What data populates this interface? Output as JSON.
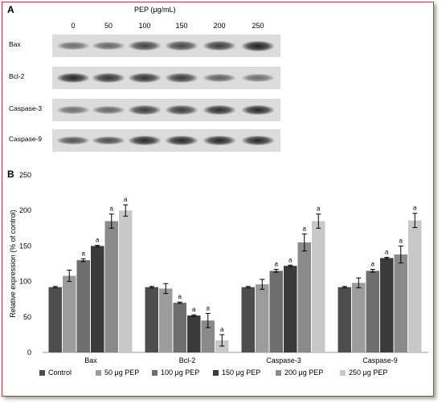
{
  "panel_a": {
    "letter": "A",
    "header": "PEP (μg/mL)",
    "concentrations": [
      "0",
      "50",
      "100",
      "150",
      "200",
      "250"
    ],
    "proteins": [
      "Bax",
      "Bcl-2",
      "Caspase-3",
      "Caspase-9"
    ],
    "band_intensity": [
      [
        0.45,
        0.5,
        0.75,
        0.72,
        0.8,
        1.0
      ],
      [
        0.95,
        0.85,
        0.85,
        0.8,
        0.55,
        0.45
      ],
      [
        0.45,
        0.5,
        0.8,
        0.8,
        0.9,
        0.95
      ],
      [
        0.65,
        0.7,
        0.95,
        0.95,
        0.95,
        0.95
      ]
    ]
  },
  "panel_b": {
    "letter": "B",
    "chart_data": {
      "type": "bar",
      "categories": [
        "Bax",
        "Bcl-2",
        "Caspase-3",
        "Caspase-9"
      ],
      "ylabel": "Relative expression (% of control)",
      "ylim": [
        0,
        250
      ],
      "yticks": [
        0,
        50,
        100,
        150,
        200,
        250
      ],
      "series": [
        {
          "name": "Control",
          "color": "#4d4d4d",
          "values": [
            92,
            92,
            92,
            92
          ],
          "errors": [
            1,
            1,
            1,
            1
          ],
          "sig": [
            "",
            "",
            "",
            ""
          ]
        },
        {
          "name": "50 μg PEP",
          "color": "#9c9c9c",
          "values": [
            108,
            90,
            96,
            98
          ],
          "errors": [
            8,
            7,
            7,
            7
          ],
          "sig": [
            "",
            "",
            "",
            ""
          ]
        },
        {
          "name": "100 μg PEP",
          "color": "#6e6e6e",
          "values": [
            130,
            70,
            115,
            115
          ],
          "errors": [
            2,
            1,
            2,
            2
          ],
          "sig": [
            "a",
            "a",
            "a",
            "a"
          ]
        },
        {
          "name": "150 μg PEP",
          "color": "#3a3a3a",
          "values": [
            150,
            52,
            122,
            133
          ],
          "errors": [
            1,
            1,
            1,
            1
          ],
          "sig": [
            "a",
            "a",
            "a",
            "a"
          ]
        },
        {
          "name": "200 μg PEP",
          "color": "#8a8a8a",
          "values": [
            185,
            45,
            155,
            138
          ],
          "errors": [
            10,
            10,
            12,
            12
          ],
          "sig": [
            "a",
            "a",
            "a",
            "a"
          ]
        },
        {
          "name": "250 μg PEP",
          "color": "#c8c8c8",
          "values": [
            200,
            17,
            185,
            186
          ],
          "errors": [
            8,
            8,
            10,
            10
          ],
          "sig": [
            "a",
            "a",
            "a",
            "a"
          ]
        }
      ]
    }
  }
}
